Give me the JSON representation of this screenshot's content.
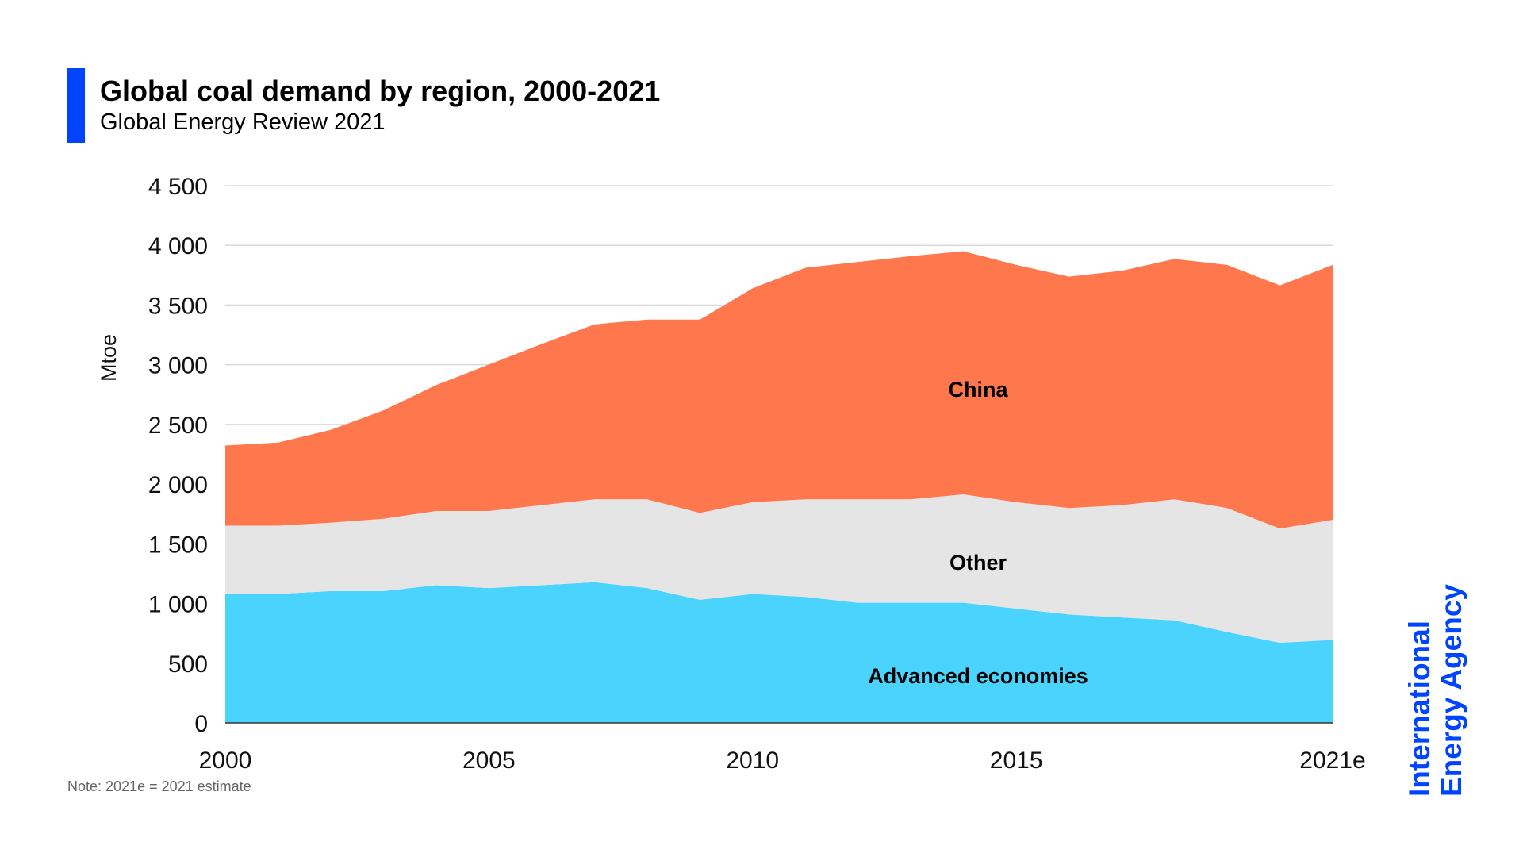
{
  "header": {
    "title": "Global coal demand by region, 2000-2021",
    "subtitle": "Global Energy Review 2021",
    "accent_color": "#0044ff"
  },
  "note": "Note: 2021e = 2021 estimate",
  "logo": {
    "line1": "International",
    "line2": "Energy Agency",
    "color": "#0044ff"
  },
  "chart_data": {
    "type": "area",
    "stacked": true,
    "title": "Global coal demand by region, 2000-2021",
    "ylabel": "Mtoe",
    "xlabel": "",
    "ylim": [
      0,
      4500
    ],
    "yticks": [
      0,
      500,
      1000,
      1500,
      2000,
      2500,
      3000,
      3500,
      4000,
      4500
    ],
    "ytick_labels": [
      "0",
      "500",
      "1 000",
      "1 500",
      "2 000",
      "2 500",
      "3 000",
      "3 500",
      "4 000",
      "4 500"
    ],
    "x": [
      2000,
      2001,
      2002,
      2003,
      2004,
      2005,
      2006,
      2007,
      2008,
      2009,
      2010,
      2011,
      2012,
      2013,
      2014,
      2015,
      2016,
      2017,
      2018,
      2019,
      2020,
      2021
    ],
    "xticks": [
      2000,
      2005,
      2010,
      2015,
      2021
    ],
    "xtick_labels": [
      "2000",
      "2005",
      "2010",
      "2015",
      "2021e"
    ],
    "grid": "horizontal",
    "legend": "inline labels",
    "series": [
      {
        "name": "Advanced economies",
        "color": "#4ad3fd",
        "values": [
          1080,
          1080,
          1104,
          1104,
          1153,
          1129,
          1153,
          1178,
          1129,
          1031,
          1080,
          1055,
          1006,
          1006,
          1006,
          957,
          908,
          883,
          859,
          761,
          671,
          695
        ]
      },
      {
        "name": "Other",
        "color": "#e5e5e5",
        "values": [
          572,
          572,
          573,
          606,
          622,
          646,
          671,
          695,
          744,
          728,
          769,
          818,
          867,
          867,
          908,
          892,
          892,
          941,
          1014,
          1039,
          957,
          1006
        ]
      },
      {
        "name": "China",
        "color": "#ff774c",
        "values": [
          671,
          696,
          777,
          908,
          1055,
          1227,
          1350,
          1465,
          1505,
          1619,
          1791,
          1939,
          1988,
          2037,
          2037,
          1987,
          1938,
          1963,
          2013,
          2036,
          2037,
          2135
        ]
      }
    ]
  }
}
